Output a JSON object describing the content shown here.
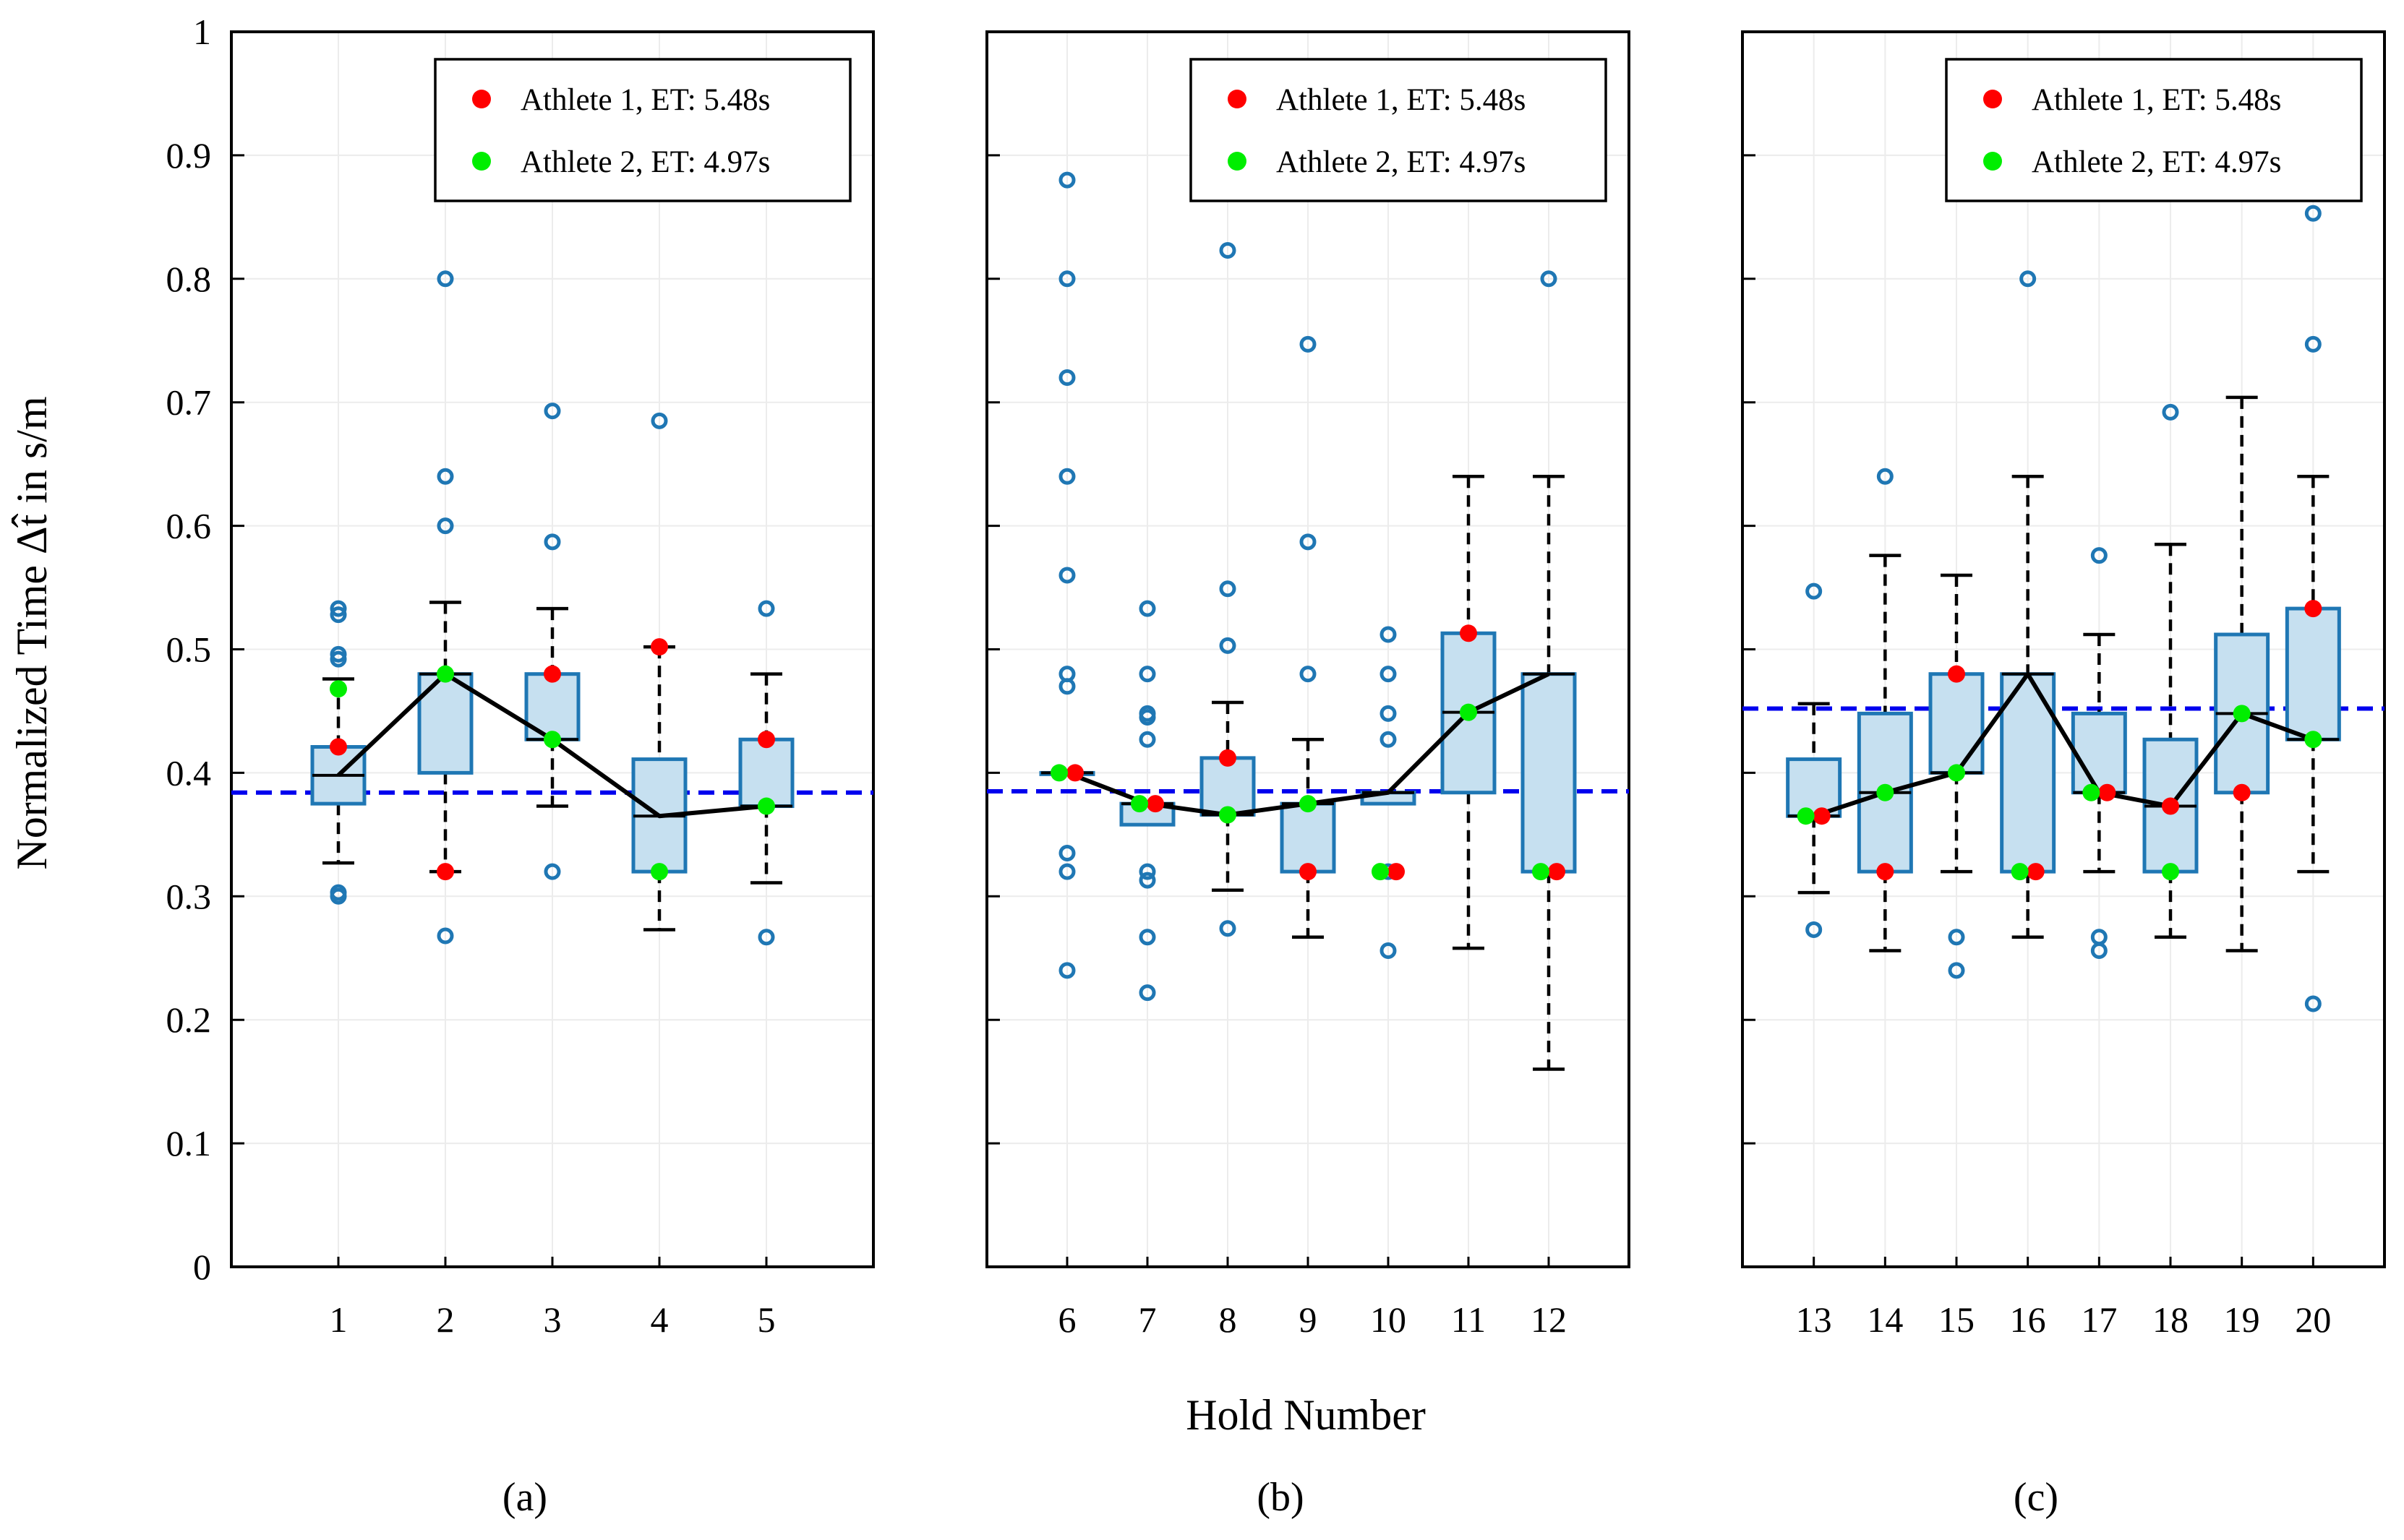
{
  "chart_data": {
    "type": "box",
    "ylabel": "Normalized Time Δt̂ in s/m",
    "xlabel": "Hold Number",
    "ylim": [
      0,
      1
    ],
    "yticks": [
      "0",
      "0.1",
      "0.2",
      "0.3",
      "0.4",
      "0.5",
      "0.6",
      "0.7",
      "0.8",
      "0.9",
      "1"
    ],
    "legend": {
      "athlete1": "Athlete 1, ET: 5.48s",
      "athlete2": "Athlete 2, ET: 4.97s"
    },
    "colors": {
      "athlete1": "#ff0000",
      "athlete2": "#00ee00",
      "box_fill": "#c6e0f0",
      "box_edge": "#1f77b4",
      "outlier": "#1f77b4",
      "median_line": "#000000",
      "reference_line": "#0000ee"
    },
    "panels": [
      {
        "label": "(a)",
        "label_letter": "a",
        "xlim": [
          0,
          6
        ],
        "reference": 0.384,
        "holds": [
          {
            "hold": "1",
            "whisker_low": 0.327,
            "q1": 0.375,
            "median": 0.398,
            "q3": 0.421,
            "whisker_high": 0.476,
            "outliers": [
              0.3,
              0.303,
              0.492,
              0.496,
              0.528,
              0.533
            ],
            "athlete1": 0.421,
            "athlete2": 0.468
          },
          {
            "hold": "2",
            "whisker_low": 0.32,
            "q1": 0.4,
            "median": 0.48,
            "q3": 0.48,
            "whisker_high": 0.538,
            "outliers": [
              0.268,
              0.6,
              0.64,
              0.8
            ],
            "athlete1": 0.32,
            "athlete2": 0.48
          },
          {
            "hold": "3",
            "whisker_low": 0.373,
            "q1": 0.427,
            "median": 0.427,
            "q3": 0.48,
            "whisker_high": 0.533,
            "outliers": [
              0.32,
              0.587,
              0.693
            ],
            "athlete1": 0.48,
            "athlete2": 0.427
          },
          {
            "hold": "4",
            "whisker_low": 0.273,
            "q1": 0.32,
            "median": 0.365,
            "q3": 0.411,
            "whisker_high": 0.502,
            "outliers": [
              0.685
            ],
            "athlete1": 0.502,
            "athlete2": 0.32
          },
          {
            "hold": "5",
            "whisker_low": 0.311,
            "q1": 0.373,
            "median": 0.373,
            "q3": 0.427,
            "whisker_high": 0.48,
            "outliers": [
              0.267,
              0.533
            ],
            "athlete1": 0.427,
            "athlete2": 0.373
          }
        ]
      },
      {
        "label": "(b)",
        "label_letter": "b",
        "xlim": [
          5,
          13
        ],
        "reference": 0.385,
        "holds": [
          {
            "hold": "6",
            "whisker_low": 0.4,
            "q1": 0.4,
            "median": 0.4,
            "q3": 0.4,
            "whisker_high": 0.4,
            "outliers": [
              0.24,
              0.32,
              0.335,
              0.47,
              0.48,
              0.56,
              0.64,
              0.72,
              0.8,
              0.88
            ],
            "athlete1": 0.4,
            "athlete2": 0.4
          },
          {
            "hold": "7",
            "whisker_low": 0.358,
            "q1": 0.358,
            "median": 0.375,
            "q3": 0.375,
            "whisker_high": 0.375,
            "outliers": [
              0.222,
              0.267,
              0.313,
              0.32,
              0.427,
              0.445,
              0.448,
              0.48,
              0.533
            ],
            "athlete1": 0.375,
            "athlete2": 0.375
          },
          {
            "hold": "8",
            "whisker_low": 0.305,
            "q1": 0.366,
            "median": 0.366,
            "q3": 0.412,
            "whisker_high": 0.457,
            "outliers": [
              0.274,
              0.503,
              0.549,
              0.823
            ],
            "athlete1": 0.412,
            "athlete2": 0.366
          },
          {
            "hold": "9",
            "whisker_low": 0.267,
            "q1": 0.32,
            "median": 0.375,
            "q3": 0.375,
            "whisker_high": 0.427,
            "outliers": [
              0.48,
              0.587,
              0.747
            ],
            "athlete1": 0.32,
            "athlete2": 0.375
          },
          {
            "hold": "10",
            "whisker_low": 0.375,
            "q1": 0.375,
            "median": 0.384,
            "q3": 0.384,
            "whisker_high": 0.384,
            "outliers": [
              0.256,
              0.32,
              0.427,
              0.448,
              0.48,
              0.512
            ],
            "athlete1": 0.32,
            "athlete2": 0.32
          },
          {
            "hold": "11",
            "whisker_low": 0.258,
            "q1": 0.384,
            "median": 0.449,
            "q3": 0.513,
            "whisker_high": 0.64,
            "outliers": [],
            "athlete1": 0.513,
            "athlete2": 0.449
          },
          {
            "hold": "12",
            "whisker_low": 0.16,
            "q1": 0.32,
            "median": 0.48,
            "q3": 0.48,
            "whisker_high": 0.64,
            "outliers": [
              0.8
            ],
            "athlete1": 0.32,
            "athlete2": 0.32
          }
        ]
      },
      {
        "label": "(c)",
        "label_letter": "c",
        "xlim": [
          12,
          21
        ],
        "reference": 0.452,
        "holds": [
          {
            "hold": "13",
            "whisker_low": 0.303,
            "q1": 0.365,
            "median": 0.365,
            "q3": 0.411,
            "whisker_high": 0.456,
            "outliers": [
              0.273,
              0.547
            ],
            "athlete1": 0.365,
            "athlete2": 0.365
          },
          {
            "hold": "14",
            "whisker_low": 0.256,
            "q1": 0.32,
            "median": 0.384,
            "q3": 0.448,
            "whisker_high": 0.576,
            "outliers": [
              0.64
            ],
            "athlete1": 0.32,
            "athlete2": 0.384
          },
          {
            "hold": "15",
            "whisker_low": 0.32,
            "q1": 0.4,
            "median": 0.4,
            "q3": 0.48,
            "whisker_high": 0.56,
            "outliers": [
              0.24,
              0.267
            ],
            "athlete1": 0.48,
            "athlete2": 0.4
          },
          {
            "hold": "16",
            "whisker_low": 0.267,
            "q1": 0.32,
            "median": 0.48,
            "q3": 0.48,
            "whisker_high": 0.64,
            "outliers": [
              0.8
            ],
            "athlete1": 0.32,
            "athlete2": 0.32
          },
          {
            "hold": "17",
            "whisker_low": 0.32,
            "q1": 0.384,
            "median": 0.384,
            "q3": 0.448,
            "whisker_high": 0.512,
            "outliers": [
              0.256,
              0.267,
              0.576
            ],
            "athlete1": 0.384,
            "athlete2": 0.384
          },
          {
            "hold": "18",
            "whisker_low": 0.267,
            "q1": 0.32,
            "median": 0.373,
            "q3": 0.427,
            "whisker_high": 0.585,
            "outliers": [
              0.692
            ],
            "athlete1": 0.373,
            "athlete2": 0.32
          },
          {
            "hold": "19",
            "whisker_low": 0.256,
            "q1": 0.384,
            "median": 0.448,
            "q3": 0.512,
            "whisker_high": 0.704,
            "outliers": [],
            "athlete1": 0.384,
            "athlete2": 0.448
          },
          {
            "hold": "20",
            "whisker_low": 0.32,
            "q1": 0.427,
            "median": 0.427,
            "q3": 0.533,
            "whisker_high": 0.64,
            "outliers": [
              0.213,
              0.747,
              0.853
            ],
            "athlete1": 0.533,
            "athlete2": 0.427
          }
        ]
      }
    ]
  }
}
